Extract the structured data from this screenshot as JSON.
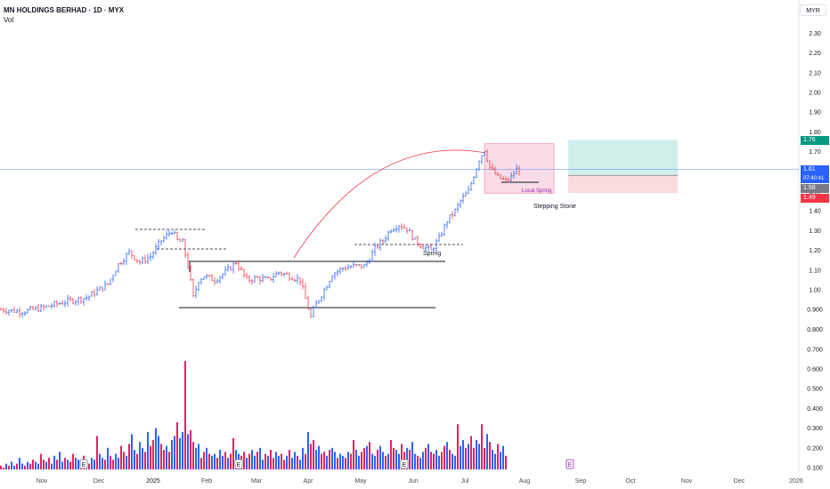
{
  "legend": {
    "symbol": "MN HOLDINGS BERHAD · 1D · MYX",
    "volume_label": "Vol"
  },
  "currency": "MYR",
  "chart_data": {
    "type": "candlestick",
    "price_axis": {
      "ticks": [
        "2.30",
        "2.20",
        "2.10",
        "2.00",
        "1.90",
        "1.80",
        "1.70",
        "1.60",
        "1.50",
        "1.40",
        "1.30",
        "1.20",
        "1.10",
        "1.00",
        "0.900",
        "0.800"
      ]
    },
    "volume_axis": {
      "ticks": [
        "0.700",
        "0.600",
        "0.500",
        "0.400",
        "0.300",
        "0.200",
        "0.100"
      ]
    },
    "time_axis": [
      "Nov",
      "Dec",
      "2025",
      "Feb",
      "Mar",
      "Apr",
      "May",
      "Jun",
      "Jul",
      "Aug",
      "Sep",
      "Oct",
      "Nov",
      "Dec",
      "2026"
    ],
    "price_labels": {
      "target": "1.76",
      "last": "1.61",
      "countdown": "07:40:41",
      "entry": "1.58",
      "stop": "1.49"
    },
    "price_path": [
      [
        0,
        0.9
      ],
      [
        8,
        0.89
      ],
      [
        16,
        0.91
      ],
      [
        24,
        0.94
      ],
      [
        32,
        0.96
      ],
      [
        40,
        1.03
      ],
      [
        44,
        1.13
      ],
      [
        48,
        1.19
      ],
      [
        52,
        1.14
      ],
      [
        56,
        1.17
      ],
      [
        60,
        1.25
      ],
      [
        64,
        1.3
      ],
      [
        66,
        1.25
      ],
      [
        68,
        1.24
      ],
      [
        70,
        1.12
      ],
      [
        72,
        0.96
      ],
      [
        74,
        1.05
      ],
      [
        76,
        1.07
      ],
      [
        80,
        1.05
      ],
      [
        84,
        1.09
      ],
      [
        88,
        1.14
      ],
      [
        92,
        1.05
      ],
      [
        96,
        1.06
      ],
      [
        100,
        1.05
      ],
      [
        104,
        1.09
      ],
      [
        108,
        1.07
      ],
      [
        112,
        1.05
      ],
      [
        116,
        0.86
      ],
      [
        118,
        0.93
      ],
      [
        121,
        1.0
      ],
      [
        124,
        1.08
      ],
      [
        128,
        1.11
      ],
      [
        132,
        1.12
      ],
      [
        136,
        1.12
      ],
      [
        138,
        1.16
      ],
      [
        140,
        1.21
      ],
      [
        143,
        1.25
      ],
      [
        146,
        1.31
      ],
      [
        149,
        1.33
      ],
      [
        152,
        1.31
      ],
      [
        155,
        1.25
      ],
      [
        158,
        1.22
      ],
      [
        161,
        1.2
      ],
      [
        164,
        1.26
      ],
      [
        167,
        1.35
      ],
      [
        170,
        1.4
      ],
      [
        172,
        1.45
      ],
      [
        175,
        1.5
      ],
      [
        177,
        1.58
      ],
      [
        179,
        1.66
      ],
      [
        181,
        1.71
      ],
      [
        183,
        1.62
      ],
      [
        186,
        1.57
      ],
      [
        189,
        1.55
      ],
      [
        191,
        1.57
      ],
      [
        193,
        1.61
      ]
    ],
    "volumes": [
      0.11,
      0.1,
      0.12,
      0.11,
      0.13,
      0.11,
      0.12,
      0.15,
      0.12,
      0.11,
      0.13,
      0.12,
      0.14,
      0.13,
      0.12,
      0.17,
      0.14,
      0.13,
      0.15,
      0.12,
      0.16,
      0.14,
      0.18,
      0.13,
      0.15,
      0.14,
      0.13,
      0.17,
      0.15,
      0.14,
      0.13,
      0.16,
      0.14,
      0.12,
      0.15,
      0.14,
      0.26,
      0.17,
      0.15,
      0.14,
      0.2,
      0.16,
      0.14,
      0.17,
      0.15,
      0.21,
      0.18,
      0.16,
      0.22,
      0.27,
      0.19,
      0.17,
      0.23,
      0.2,
      0.18,
      0.28,
      0.21,
      0.24,
      0.3,
      0.26,
      0.22,
      0.19,
      0.21,
      0.18,
      0.24,
      0.26,
      0.33,
      0.25,
      0.28,
      0.64,
      0.27,
      0.29,
      0.23,
      0.2,
      0.22,
      0.15,
      0.18,
      0.2,
      0.17,
      0.16,
      0.17,
      0.15,
      0.19,
      0.16,
      0.18,
      0.15,
      0.17,
      0.25,
      0.19,
      0.17,
      0.16,
      0.18,
      0.15,
      0.17,
      0.19,
      0.16,
      0.18,
      0.2,
      0.14,
      0.17,
      0.16,
      0.19,
      0.15,
      0.18,
      0.16,
      0.17,
      0.14,
      0.16,
      0.19,
      0.15,
      0.18,
      0.16,
      0.14,
      0.2,
      0.17,
      0.28,
      0.22,
      0.24,
      0.19,
      0.21,
      0.17,
      0.18,
      0.16,
      0.19,
      0.2,
      0.18,
      0.15,
      0.17,
      0.16,
      0.15,
      0.18,
      0.17,
      0.24,
      0.19,
      0.16,
      0.18,
      0.2,
      0.21,
      0.23,
      0.17,
      0.16,
      0.19,
      0.21,
      0.18,
      0.16,
      0.17,
      0.24,
      0.2,
      0.19,
      0.17,
      0.22,
      0.18,
      0.2,
      0.19,
      0.23,
      0.17,
      0.16,
      0.15,
      0.18,
      0.2,
      0.22,
      0.18,
      0.17,
      0.19,
      0.16,
      0.18,
      0.21,
      0.23,
      0.19,
      0.17,
      0.16,
      0.32,
      0.21,
      0.24,
      0.2,
      0.22,
      0.26,
      0.2,
      0.24,
      0.22,
      0.32,
      0.2,
      0.27,
      0.23,
      0.19,
      0.17,
      0.22,
      0.18,
      0.21,
      0.16
    ],
    "annotations": {
      "spring": "Spring",
      "local_spring": "Local Spring",
      "stepping_stone": "Stepping Stone",
      "earnings_marker": "E"
    },
    "colors": {
      "up": "#2962ff",
      "down": "#f23645",
      "volume_up": "#2962ff",
      "volume_down": "#e91e63",
      "target_zone": "#b2e4dc",
      "stop_zone": "#f8cdd0",
      "last_price": "#2962ff",
      "target_label": "#089981",
      "stop_label": "#f23645",
      "entry_label": "#787b86",
      "highlight_box": "#f7c6d9",
      "arc": "#f23645",
      "annotation_text": "#9c27b0"
    }
  }
}
